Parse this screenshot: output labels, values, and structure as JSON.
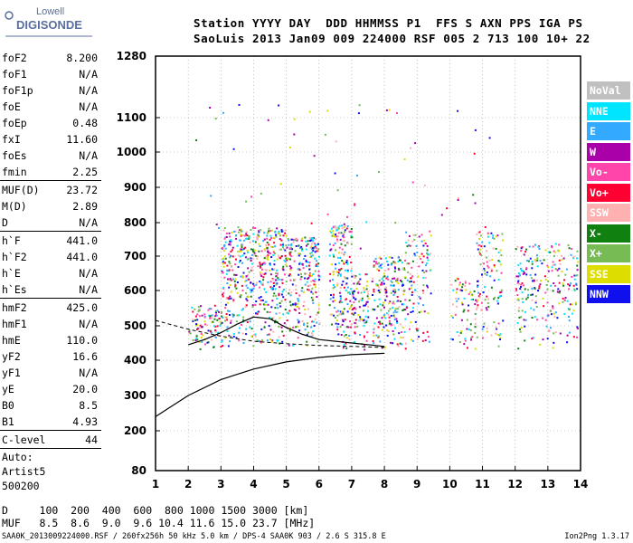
{
  "logo": {
    "brand": "Lowell",
    "product": "DIGISONDE"
  },
  "header": {
    "line1": "Station YYYY DAY  DDD HHMMSS P1  FFS S AXN PPS IGA PS",
    "line2": "SaoLuis 2013 Jan09 009 224000 RSF 005 2 713 100 10+ 22"
  },
  "params": [
    {
      "name": "foF2",
      "value": "8.200"
    },
    {
      "name": "foF1",
      "value": "N/A"
    },
    {
      "name": "foF1p",
      "value": "N/A"
    },
    {
      "name": "foE",
      "value": "N/A"
    },
    {
      "name": "foEp",
      "value": "0.48"
    },
    {
      "name": "fxI",
      "value": "11.60"
    },
    {
      "name": "foEs",
      "value": "N/A"
    },
    {
      "name": "fmin",
      "value": "2.25"
    },
    {
      "sep": true
    },
    {
      "name": "MUF(D)",
      "value": "23.72"
    },
    {
      "name": "M(D)",
      "value": "2.89"
    },
    {
      "name": "D",
      "value": "N/A"
    },
    {
      "sep": true
    },
    {
      "name": "h`F",
      "value": "441.0"
    },
    {
      "name": "h`F2",
      "value": "441.0"
    },
    {
      "name": "h`E",
      "value": "N/A"
    },
    {
      "name": "h`Es",
      "value": "N/A"
    },
    {
      "sep": true
    },
    {
      "name": "hmF2",
      "value": "425.0"
    },
    {
      "name": "hmF1",
      "value": "N/A"
    },
    {
      "name": "hmE",
      "value": "110.0"
    },
    {
      "name": "yF2",
      "value": "16.6"
    },
    {
      "name": "yF1",
      "value": "N/A"
    },
    {
      "name": "yE",
      "value": "20.0"
    },
    {
      "name": "B0",
      "value": "8.5"
    },
    {
      "name": "B1",
      "value": "4.93"
    },
    {
      "sep": true
    },
    {
      "name": "C-level",
      "value": "44"
    },
    {
      "sep": true
    }
  ],
  "autoscale": {
    "label": "Auto:",
    "program": "Artist5",
    "version": "500200"
  },
  "legend": [
    {
      "label": "NoVal",
      "color": "#c0c0c0"
    },
    {
      "label": "NNE",
      "color": "#00e5ff"
    },
    {
      "label": "E",
      "color": "#33aaff"
    },
    {
      "label": "W",
      "color": "#aa00aa"
    },
    {
      "label": "Vo-",
      "color": "#ff44aa"
    },
    {
      "label": "Vo+",
      "color": "#ff0033"
    },
    {
      "label": "SSW",
      "color": "#ffb0b0"
    },
    {
      "label": "X-",
      "color": "#108010"
    },
    {
      "label": "X+",
      "color": "#77bb55"
    },
    {
      "label": "SSE",
      "color": "#dddd00"
    },
    {
      "label": "NNW",
      "color": "#1010ee"
    }
  ],
  "bottom": {
    "d_row": "D     100  200  400  600  800 1000 1500 3000 [km]",
    "muf_row": "MUF   8.5  8.6  9.0  9.6 10.4 11.6 15.0 23.7 [MHz]"
  },
  "footer": {
    "text": "SAA0K_2013009224000.RSF / 260fx256h 50 kHz 5.0 km / DPS-4 SAA0K 903 / 2.6 S 315.8 E",
    "version": "Ion2Png 1.3.17"
  },
  "chart_data": {
    "type": "scatter",
    "title": "",
    "xlabel": "",
    "ylabel": "",
    "xlim": [
      1,
      14
    ],
    "ylim": [
      80,
      1280
    ],
    "x_ticks": [
      1,
      2,
      3,
      4,
      5,
      6,
      7,
      8,
      9,
      10,
      11,
      12,
      13,
      14
    ],
    "y_ticks": [
      80,
      200,
      300,
      400,
      500,
      600,
      700,
      800,
      900,
      1000,
      1100,
      1280
    ],
    "y_scale": "ionogram virtual height (km), compressed non-linear",
    "grid": "dotted",
    "echo_clusters": [
      {
        "x_range": [
          2.0,
          3.0
        ],
        "y_range": [
          430,
          560
        ],
        "density": "high"
      },
      {
        "x_range": [
          3.0,
          5.0
        ],
        "y_range": [
          440,
          790
        ],
        "density": "high"
      },
      {
        "x_range": [
          5.0,
          6.0
        ],
        "y_range": [
          440,
          760
        ],
        "density": "high"
      },
      {
        "x_range": [
          6.3,
          7.0
        ],
        "y_range": [
          430,
          800
        ],
        "density": "high"
      },
      {
        "x_range": [
          7.0,
          7.5
        ],
        "y_range": [
          430,
          650
        ],
        "density": "high"
      },
      {
        "x_range": [
          7.6,
          8.6
        ],
        "y_range": [
          430,
          700
        ],
        "density": "high"
      },
      {
        "x_range": [
          8.6,
          9.4
        ],
        "y_range": [
          430,
          780
        ],
        "density": "medium"
      },
      {
        "x_range": [
          10.0,
          10.8
        ],
        "y_range": [
          430,
          640
        ],
        "density": "medium"
      },
      {
        "x_range": [
          10.8,
          11.6
        ],
        "y_range": [
          430,
          780
        ],
        "density": "medium"
      },
      {
        "x_range": [
          12.0,
          13.9
        ],
        "y_range": [
          430,
          740
        ],
        "density": "medium"
      }
    ],
    "traces": {
      "o_trace": {
        "name": "",
        "x": [
          1.0,
          2.0,
          3.0,
          4.0,
          5.0,
          6.0,
          7.0,
          8.0
        ],
        "y": [
          240,
          300,
          345,
          375,
          395,
          408,
          416,
          420
        ]
      },
      "f2_trace": {
        "name": "",
        "x": [
          2.0,
          2.5,
          3.0,
          3.5,
          4.0,
          4.5,
          5.0,
          5.5,
          6.0,
          7.0,
          8.0
        ],
        "y": [
          445,
          460,
          480,
          505,
          525,
          520,
          495,
          475,
          460,
          450,
          440
        ]
      },
      "dashed_trace": {
        "name": "",
        "x": [
          1.0,
          2.0,
          3.0,
          4.0,
          5.0,
          6.0,
          7.0,
          8.0
        ],
        "y": [
          515,
          490,
          470,
          455,
          448,
          443,
          440,
          437
        ]
      }
    }
  }
}
